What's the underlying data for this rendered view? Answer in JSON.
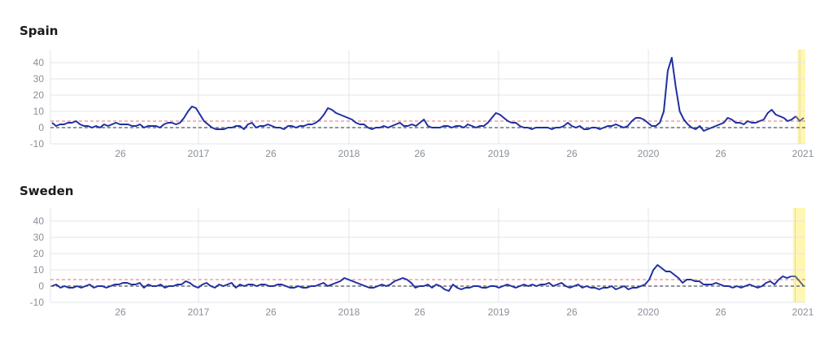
{
  "chart_data": [
    {
      "type": "line",
      "title": "Spain",
      "ylim": [
        -10,
        45
      ],
      "y_ticks": [
        -10,
        0,
        10,
        20,
        30,
        40
      ],
      "x_ticks": [
        "26",
        "2017",
        "26",
        "2018",
        "26",
        "2019",
        "26",
        "2020",
        "26",
        "2021"
      ],
      "grid": true,
      "reference_lines": [
        0,
        4
      ],
      "highlight": "final weeks shaded yellow",
      "colors": {
        "line": "#1f2fa0",
        "threshold": "#f08a8a",
        "zero": "#555555",
        "highlight": "#fff7b3"
      },
      "series": [
        {
          "values": [
            3,
            1,
            2,
            2,
            3,
            3,
            4,
            2,
            1,
            1,
            0,
            1,
            0,
            2,
            1,
            2,
            3,
            2,
            2,
            2,
            1,
            1,
            2,
            0,
            1,
            1,
            1,
            0,
            2,
            3,
            3,
            2,
            3,
            6,
            10,
            13,
            12,
            8,
            4,
            2,
            0,
            -1,
            -1,
            -1,
            0,
            0,
            1,
            1,
            -1,
            2,
            3,
            0,
            1,
            1,
            2,
            1,
            0,
            0,
            -1,
            1,
            1,
            0,
            1,
            1,
            2,
            2,
            3,
            5,
            8,
            12,
            11,
            9,
            8,
            7,
            6,
            5,
            3,
            2,
            2,
            0,
            -1,
            0,
            0,
            1,
            0,
            1,
            2,
            3,
            1,
            1,
            2,
            1,
            3,
            5,
            1,
            0,
            0,
            0,
            1,
            1,
            0,
            1,
            1,
            0,
            2,
            1,
            0,
            1,
            1,
            3,
            6,
            9,
            8,
            6,
            4,
            3,
            3,
            1,
            0,
            0,
            -1,
            0,
            0,
            0,
            0,
            -1,
            0,
            0,
            1,
            3,
            1,
            0,
            1,
            -1,
            -1,
            0,
            0,
            -1,
            0,
            1,
            1,
            2,
            1,
            0,
            1,
            4,
            6,
            6,
            5,
            3,
            1,
            1,
            3,
            10,
            35,
            43,
            25,
            10,
            5,
            2,
            0,
            -1,
            1,
            -2,
            -1,
            0,
            1,
            2,
            3,
            6,
            5,
            3,
            3,
            2,
            4,
            3,
            3,
            4,
            5,
            9,
            11,
            8,
            7,
            6,
            4,
            5,
            7
          ],
          "highlight_values": [
            4,
            6
          ]
        }
      ]
    },
    {
      "type": "line",
      "title": "Sweden",
      "ylim": [
        -10,
        45
      ],
      "y_ticks": [
        -10,
        0,
        10,
        20,
        30,
        40
      ],
      "x_ticks": [
        "26",
        "2017",
        "26",
        "2018",
        "26",
        "2019",
        "26",
        "2020",
        "26",
        "2021"
      ],
      "grid": true,
      "reference_lines": [
        0,
        4
      ],
      "highlight": "final weeks shaded yellow",
      "colors": {
        "line": "#1f2fa0",
        "threshold": "#f08a8a",
        "zero": "#555555",
        "highlight": "#fff7b3"
      },
      "series": [
        {
          "values": [
            0,
            1,
            -1,
            0,
            -1,
            -1,
            0,
            -1,
            0,
            1,
            -1,
            0,
            0,
            -1,
            0,
            1,
            1,
            2,
            2,
            1,
            1,
            2,
            -1,
            1,
            0,
            0,
            1,
            -1,
            0,
            0,
            1,
            1,
            3,
            2,
            0,
            -1,
            1,
            2,
            0,
            -1,
            1,
            0,
            1,
            2,
            -1,
            1,
            0,
            1,
            1,
            0,
            1,
            1,
            0,
            0,
            1,
            1,
            0,
            -1,
            -1,
            0,
            -1,
            -1,
            0,
            0,
            1,
            2,
            0,
            1,
            2,
            3,
            5,
            4,
            3,
            2,
            1,
            0,
            -1,
            -1,
            0,
            1,
            0,
            1,
            3,
            4,
            5,
            4,
            2,
            -1,
            0,
            0,
            1,
            -1,
            1,
            0,
            -2,
            -3,
            1,
            -1,
            -2,
            -1,
            -1,
            0,
            0,
            -1,
            -1,
            0,
            0,
            -1,
            0,
            1,
            0,
            -1,
            0,
            1,
            0,
            1,
            0,
            1,
            1,
            2,
            0,
            1,
            2,
            0,
            -1,
            0,
            1,
            -1,
            0,
            -1,
            -1,
            -2,
            -1,
            -1,
            0,
            -2,
            -1,
            0,
            -2,
            -1,
            -1,
            0,
            1,
            4,
            10,
            13,
            11,
            9,
            9,
            7,
            5,
            2,
            4,
            4,
            3,
            3,
            1,
            1,
            1,
            2,
            1,
            0,
            0,
            -1,
            0,
            -1,
            0,
            1,
            0,
            -1,
            0,
            2,
            3,
            1,
            4,
            6,
            5,
            6
          ],
          "highlight_values": [
            6,
            3,
            0
          ]
        }
      ]
    }
  ]
}
